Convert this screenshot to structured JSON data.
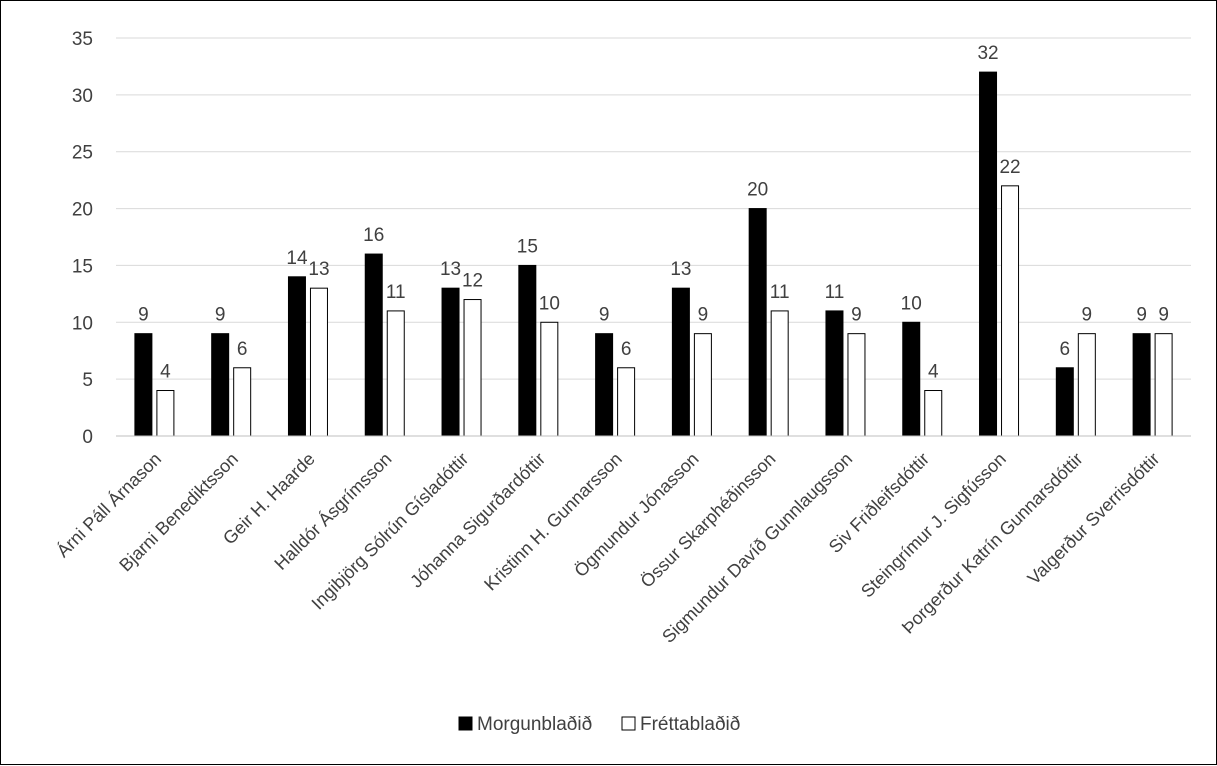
{
  "chart_data": {
    "type": "bar",
    "title": "",
    "xlabel": "",
    "ylabel": "",
    "ylim": [
      0,
      35
    ],
    "yticks": [
      0,
      5,
      10,
      15,
      20,
      25,
      30,
      35
    ],
    "grid": true,
    "legend_position": "bottom",
    "categories": [
      "Árni Páll Árnason",
      "Bjarni Benediktsson",
      "Geir H. Haarde",
      "Halldór Ásgrímsson",
      "Ingibjörg Sólrún Gísladóttir",
      "Jóhanna Sigurðardóttir",
      "Kristinn H. Gunnarsson",
      "Ögmundur Jónasson",
      "Össur Skarphéðinsson",
      "Sigmundur Davíð Gunnlaugsson",
      "Siv Friðleifsdóttir",
      "Steingrímur J. Sigfússon",
      "Þorgerður Katrín Gunnarsdóttir",
      "Valgerður Sverrisdóttir"
    ],
    "series": [
      {
        "name": "Morgunblaðið",
        "color": "#000000",
        "values": [
          9,
          9,
          14,
          16,
          13,
          15,
          9,
          13,
          20,
          11,
          10,
          32,
          6,
          9
        ]
      },
      {
        "name": "Fréttablaðið",
        "color": "#ffffff",
        "values": [
          4,
          6,
          13,
          11,
          12,
          10,
          6,
          9,
          11,
          9,
          4,
          22,
          9,
          9
        ]
      }
    ]
  }
}
